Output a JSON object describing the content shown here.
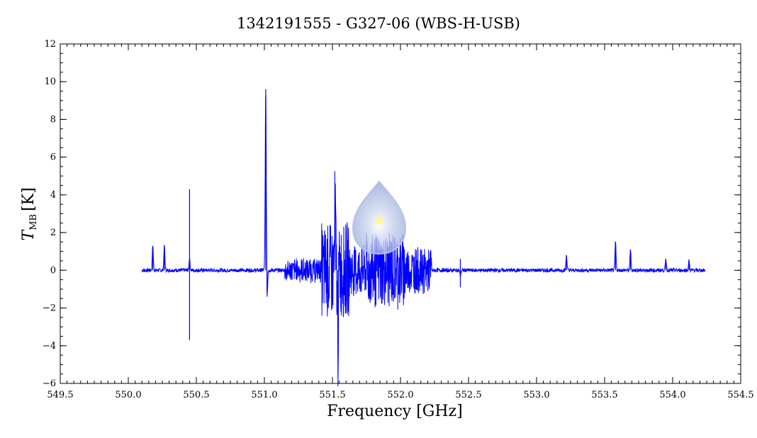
{
  "chart_data": {
    "type": "line",
    "title": "1342191555 - G327-06 (WBS-H-USB)",
    "xlabel": "Frequency [GHz]",
    "ylabel_main": "T",
    "ylabel_sub": "MB",
    "ylabel_unit": "[K]",
    "xlim": [
      549.5,
      554.5
    ],
    "ylim": [
      -6,
      12
    ],
    "xticks": [
      549.5,
      550.0,
      550.5,
      551.0,
      551.5,
      552.0,
      552.5,
      553.0,
      553.5,
      554.0,
      554.5
    ],
    "xtick_labels": [
      "549.5",
      "550.0",
      "550.5",
      "551.0",
      "551.5",
      "552.0",
      "552.5",
      "553.0",
      "553.5",
      "554.0",
      "554.5"
    ],
    "yticks": [
      -6,
      -4,
      -2,
      0,
      2,
      4,
      6,
      8,
      10,
      12
    ],
    "ytick_labels": [
      "−6",
      "−4",
      "−2",
      "0",
      "2",
      "4",
      "6",
      "8",
      "10",
      "12"
    ],
    "grid": false,
    "series": [
      {
        "color": "#0000ff",
        "x_range": [
          550.1,
          554.24
        ],
        "baseline": 0.0,
        "lines": [
          {
            "x": 550.18,
            "y": 1.3
          },
          {
            "x": 550.265,
            "y": 1.3
          },
          {
            "x": 550.45,
            "y": 4.3
          },
          {
            "x": 550.45,
            "y": -3.7
          },
          {
            "x": 551.01,
            "y": 9.6
          },
          {
            "x": 551.02,
            "y": -1.4
          },
          {
            "x": 551.52,
            "y": 3.3
          },
          {
            "x": 551.54,
            "y": -3.9
          },
          {
            "x": 552.44,
            "y": 0.6
          },
          {
            "x": 552.44,
            "y": -0.9
          },
          {
            "x": 553.22,
            "y": 0.8
          },
          {
            "x": 553.58,
            "y": 1.5
          },
          {
            "x": 553.69,
            "y": 1.1
          },
          {
            "x": 553.95,
            "y": 0.6
          },
          {
            "x": 554.12,
            "y": 0.5
          }
        ],
        "envelope_regions": [
          {
            "x": [
              551.15,
              551.42
            ],
            "amp": 0.6
          },
          {
            "x": [
              551.42,
              551.62
            ],
            "amp": 2.5
          },
          {
            "x": [
              551.62,
              551.75
            ],
            "amp": 1.4
          },
          {
            "x": [
              551.75,
              552.05
            ],
            "amp": 2.0
          },
          {
            "x": [
              552.05,
              552.23
            ],
            "amp": 1.2
          }
        ]
      }
    ]
  },
  "watermark": {
    "icon": "drop-logo-icon"
  }
}
